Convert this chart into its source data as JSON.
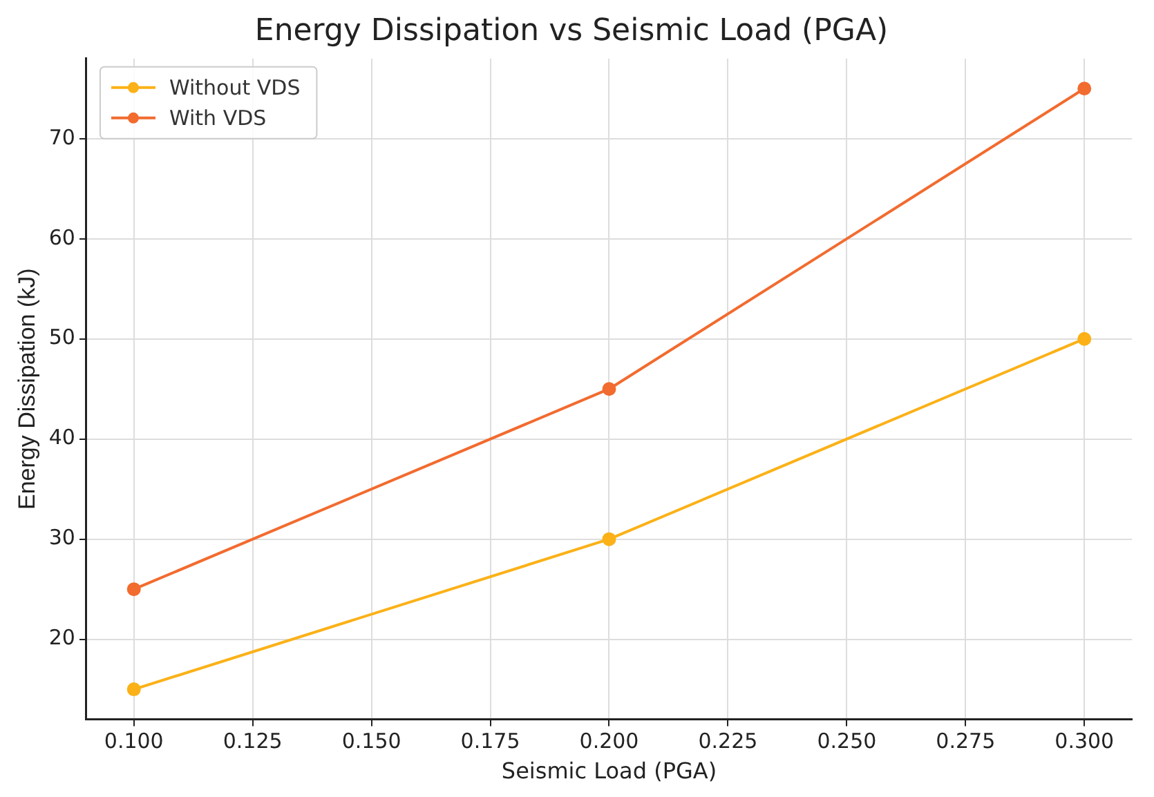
{
  "chart_data": {
    "type": "line",
    "title": "Energy Dissipation vs Seismic Load (PGA)",
    "xlabel": "Seismic Load (PGA)",
    "ylabel": "Energy Dissipation (kJ)",
    "x": [
      0.1,
      0.2,
      0.3
    ],
    "series": [
      {
        "name": "Without VDS",
        "color": "#fbb117",
        "values": [
          15,
          30,
          50
        ]
      },
      {
        "name": "With VDS",
        "color": "#f26b2f",
        "values": [
          25,
          45,
          75
        ]
      }
    ],
    "xlim": [
      0.09,
      0.31
    ],
    "xticks": [
      {
        "value": 0.1,
        "label": "0.100"
      },
      {
        "value": 0.125,
        "label": "0.125"
      },
      {
        "value": 0.15,
        "label": "0.150"
      },
      {
        "value": 0.175,
        "label": "0.175"
      },
      {
        "value": 0.2,
        "label": "0.200"
      },
      {
        "value": 0.225,
        "label": "0.225"
      },
      {
        "value": 0.25,
        "label": "0.250"
      },
      {
        "value": 0.275,
        "label": "0.275"
      },
      {
        "value": 0.3,
        "label": "0.300"
      }
    ],
    "ylim": [
      12,
      78
    ],
    "yticks": [
      20,
      30,
      40,
      50,
      60,
      70
    ],
    "grid": true,
    "legend": "top left",
    "marker": "circle",
    "line_style": "solid"
  }
}
